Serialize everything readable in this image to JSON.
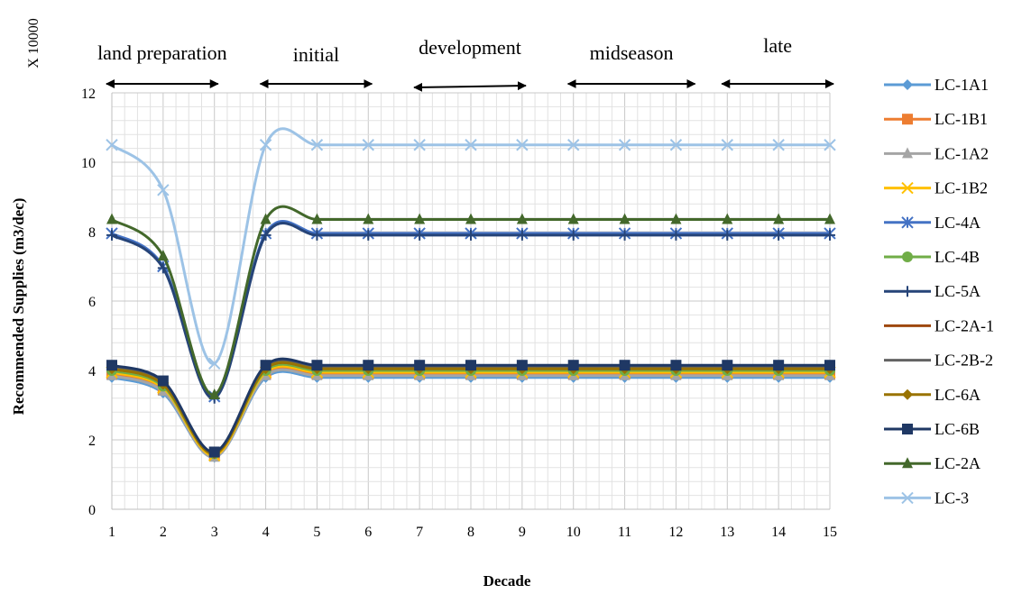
{
  "chart_data": {
    "type": "line",
    "xlabel": "Decade",
    "ylabel": "Recommended Supplies (m3/dec)",
    "multiplier": "X 10000",
    "x": [
      1,
      2,
      3,
      4,
      5,
      6,
      7,
      8,
      9,
      10,
      11,
      12,
      13,
      14,
      15
    ],
    "xlim": [
      1,
      15
    ],
    "ylim": [
      0,
      12
    ],
    "yticks": [
      0,
      2,
      4,
      6,
      8,
      10,
      12
    ],
    "grid": true,
    "legend_position": "right",
    "stages": [
      {
        "label": "land preparation",
        "from": 1,
        "to": 3
      },
      {
        "label": "initial",
        "from": 4,
        "to": 6
      },
      {
        "label": "development",
        "from": 7,
        "to": 9
      },
      {
        "label": "midseason",
        "from": 10,
        "to": 12.3
      },
      {
        "label": "late",
        "from": 13,
        "to": 15
      }
    ],
    "series": [
      {
        "name": "LC-1A1",
        "color": "#5b9bd5",
        "marker": "diamond",
        "values": [
          3.8,
          3.35,
          1.5,
          3.8,
          3.8,
          3.8,
          3.8,
          3.8,
          3.8,
          3.8,
          3.8,
          3.8,
          3.8,
          3.8,
          3.8
        ]
      },
      {
        "name": "LC-1B1",
        "color": "#ed7d31",
        "marker": "square",
        "values": [
          3.9,
          3.45,
          1.55,
          3.9,
          3.9,
          3.9,
          3.9,
          3.9,
          3.9,
          3.9,
          3.9,
          3.9,
          3.9,
          3.9,
          3.9
        ]
      },
      {
        "name": "LC-1A2",
        "color": "#a5a5a5",
        "marker": "triangle",
        "values": [
          3.85,
          3.4,
          1.5,
          3.85,
          3.85,
          3.85,
          3.85,
          3.85,
          3.85,
          3.85,
          3.85,
          3.85,
          3.85,
          3.85,
          3.85
        ]
      },
      {
        "name": "LC-1B2",
        "color": "#ffc000",
        "marker": "x",
        "values": [
          3.95,
          3.5,
          1.55,
          3.95,
          3.95,
          3.95,
          3.95,
          3.95,
          3.95,
          3.95,
          3.95,
          3.95,
          3.95,
          3.95,
          3.95
        ]
      },
      {
        "name": "LC-4A",
        "color": "#4472c4",
        "marker": "star",
        "values": [
          7.95,
          7.0,
          3.25,
          7.95,
          7.95,
          7.95,
          7.95,
          7.95,
          7.95,
          7.95,
          7.95,
          7.95,
          7.95,
          7.95,
          7.95
        ]
      },
      {
        "name": "LC-4B",
        "color": "#70ad47",
        "marker": "circle",
        "values": [
          4.0,
          3.55,
          1.6,
          4.0,
          4.0,
          4.0,
          4.0,
          4.0,
          4.0,
          4.0,
          4.0,
          4.0,
          4.0,
          4.0,
          4.0
        ]
      },
      {
        "name": "LC-5A",
        "color": "#264478",
        "marker": "plus",
        "values": [
          7.9,
          6.95,
          3.2,
          7.9,
          7.9,
          7.9,
          7.9,
          7.9,
          7.9,
          7.9,
          7.9,
          7.9,
          7.9,
          7.9,
          7.9
        ]
      },
      {
        "name": "LC-2A-1",
        "color": "#9e480e",
        "marker": "none",
        "values": [
          4.05,
          3.6,
          1.6,
          4.05,
          4.05,
          4.05,
          4.05,
          4.05,
          4.05,
          4.05,
          4.05,
          4.05,
          4.05,
          4.05,
          4.05
        ]
      },
      {
        "name": "LC-2B-2",
        "color": "#636363",
        "marker": "none",
        "values": [
          4.1,
          3.65,
          1.65,
          4.1,
          4.1,
          4.1,
          4.1,
          4.1,
          4.1,
          4.1,
          4.1,
          4.1,
          4.1,
          4.1,
          4.1
        ]
      },
      {
        "name": "LC-6A",
        "color": "#997300",
        "marker": "diamond",
        "values": [
          4.05,
          3.6,
          1.6,
          4.05,
          4.05,
          4.05,
          4.05,
          4.05,
          4.05,
          4.05,
          4.05,
          4.05,
          4.05,
          4.05,
          4.05
        ]
      },
      {
        "name": "LC-6B",
        "color": "#1f3864",
        "marker": "square",
        "values": [
          4.15,
          3.7,
          1.65,
          4.15,
          4.15,
          4.15,
          4.15,
          4.15,
          4.15,
          4.15,
          4.15,
          4.15,
          4.15,
          4.15,
          4.15
        ]
      },
      {
        "name": "LC-2A",
        "color": "#43682b",
        "marker": "triangle",
        "values": [
          8.35,
          7.3,
          3.3,
          8.35,
          8.35,
          8.35,
          8.35,
          8.35,
          8.35,
          8.35,
          8.35,
          8.35,
          8.35,
          8.35,
          8.35
        ]
      },
      {
        "name": "LC-3",
        "color": "#9dc3e6",
        "marker": "x",
        "values": [
          10.5,
          9.2,
          4.2,
          10.5,
          10.5,
          10.5,
          10.5,
          10.5,
          10.5,
          10.5,
          10.5,
          10.5,
          10.5,
          10.5,
          10.5
        ]
      }
    ]
  }
}
